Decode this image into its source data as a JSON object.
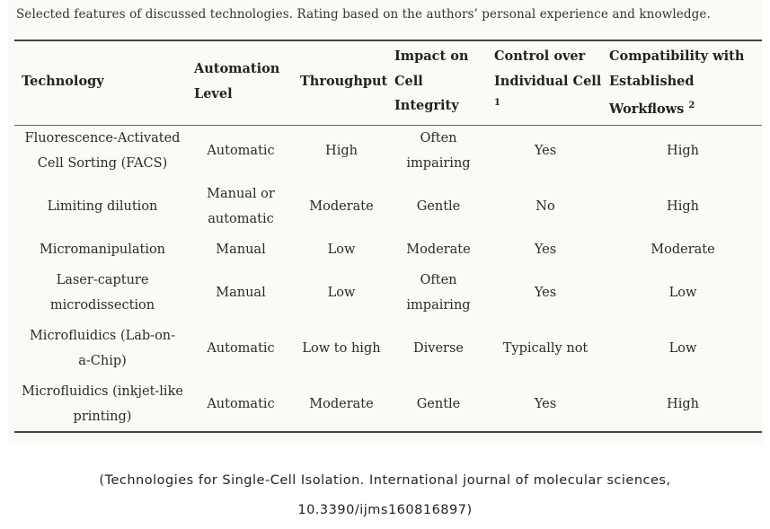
{
  "caption": "Selected features of discussed technologies. Rating based on the authors’ personal experience and knowledge.",
  "headers": {
    "technology": "Technology",
    "automation": [
      "Automation",
      "Level"
    ],
    "throughput": "Throughput",
    "impact": [
      "Impact on",
      "Cell",
      "Integrity"
    ],
    "control": [
      "Control over",
      "Individual Cell",
      "1"
    ],
    "compat": [
      "Compatibility with",
      "Established",
      "Workflows",
      "2"
    ]
  },
  "rows": [
    {
      "technology": [
        "Fluorescence-Activated",
        "Cell Sorting (FACS)"
      ],
      "automation": [
        "Automatic"
      ],
      "throughput": "High",
      "impact": [
        "Often",
        "impairing"
      ],
      "control": "Yes",
      "compat": "High"
    },
    {
      "technology": [
        "Limiting dilution"
      ],
      "automation": [
        "Manual or",
        "automatic"
      ],
      "throughput": "Moderate",
      "impact": [
        "Gentle"
      ],
      "control": "No",
      "compat": "High"
    },
    {
      "technology": [
        "Micromanipulation"
      ],
      "automation": [
        "Manual"
      ],
      "throughput": "Low",
      "impact": [
        "Moderate"
      ],
      "control": "Yes",
      "compat": "Moderate"
    },
    {
      "technology": [
        "Laser-capture",
        "microdissection"
      ],
      "automation": [
        "Manual"
      ],
      "throughput": "Low",
      "impact": [
        "Often",
        "impairing"
      ],
      "control": "Yes",
      "compat": "Low"
    },
    {
      "technology": [
        "Microfluidics (Lab-on-",
        "a-Chip)"
      ],
      "automation": [
        "Automatic"
      ],
      "throughput": "Low to high",
      "impact": [
        "Diverse"
      ],
      "control": "Typically not",
      "compat": "Low"
    },
    {
      "technology": [
        "Microfluidics (inkjet-like",
        "printing)"
      ],
      "automation": [
        "Automatic"
      ],
      "throughput": "Moderate",
      "impact": [
        "Gentle"
      ],
      "control": "Yes",
      "compat": "High"
    }
  ],
  "footer": [
    "(Technologies for Single-Cell Isolation. International journal of molecular sciences,",
    "10.3390/ijms160816897)"
  ]
}
